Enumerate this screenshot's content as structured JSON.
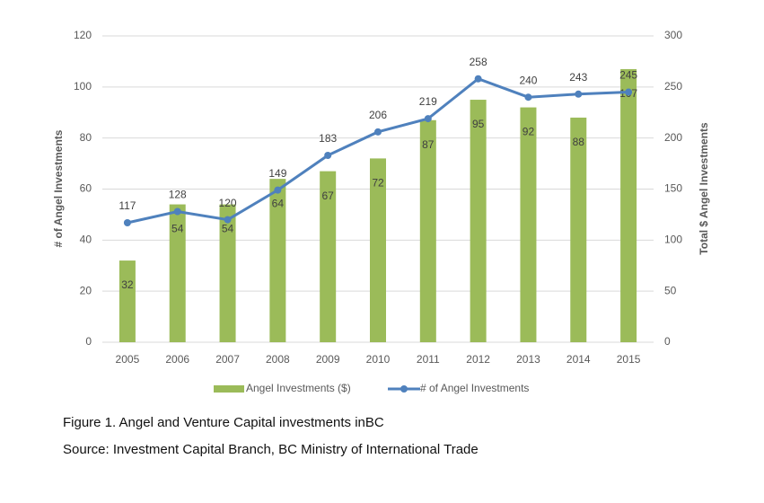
{
  "chart_data": {
    "type": "bar-line",
    "categories": [
      "2005",
      "2006",
      "2007",
      "2008",
      "2009",
      "2010",
      "2011",
      "2012",
      "2013",
      "2014",
      "2015"
    ],
    "series": [
      {
        "name": "Angel Investments ($)",
        "type": "bar",
        "color": "#9bbb59",
        "values": [
          32,
          54,
          54,
          64,
          67,
          72,
          87,
          95,
          92,
          88,
          107
        ]
      },
      {
        "name": "# of Angel Investments",
        "type": "line",
        "color": "#4f81bd",
        "axis": "y2",
        "values": [
          117,
          128,
          120,
          149,
          183,
          206,
          219,
          258,
          240,
          243,
          245
        ]
      }
    ],
    "y_label": "# of Angel Investments",
    "y2_label": "Total $ Angel Investments",
    "ylim": [
      0,
      120
    ],
    "yticks": [
      0,
      20,
      40,
      60,
      80,
      100,
      120
    ],
    "y2lim": [
      0,
      300
    ],
    "y2ticks": [
      0,
      50,
      100,
      150,
      200,
      250,
      300
    ],
    "grid": true,
    "legend": "bottom",
    "caption": "Figure 1.  Angel and Venture Capital investments inBC",
    "source": "Source:  Investment Capital Branch, BC Ministry of International Trade"
  }
}
